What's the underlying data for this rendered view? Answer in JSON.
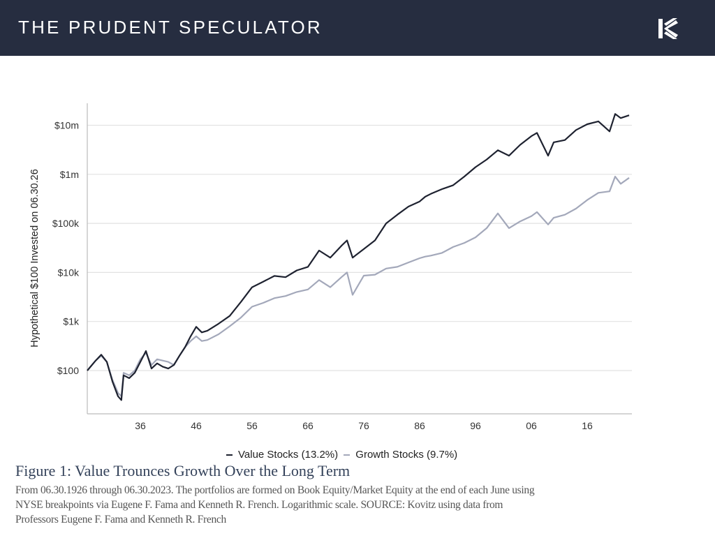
{
  "header": {
    "brand": "THE PRUDENT SPECULATOR",
    "logo_icon": "kovitz-k-logo"
  },
  "colors": {
    "header_bg": "#262d40",
    "value_series": "#1e2230",
    "growth_series": "#a3a8ba",
    "title": "#34425a"
  },
  "chart_data": {
    "type": "line",
    "ylabel": "Hypothetical $100 Invested on 06.30.26",
    "y_scale": "log",
    "ylim": [
      13,
      28000000
    ],
    "y_ticks": [
      {
        "value": 100,
        "label": "$100"
      },
      {
        "value": 1000,
        "label": "$1k"
      },
      {
        "value": 10000,
        "label": "$10k"
      },
      {
        "value": 100000,
        "label": "$100k"
      },
      {
        "value": 1000000,
        "label": "$1m"
      },
      {
        "value": 10000000,
        "label": "$10m"
      }
    ],
    "xlim": [
      1926.5,
      2023.5
    ],
    "x_ticks": [
      {
        "value": 1936,
        "label": "36"
      },
      {
        "value": 1946,
        "label": "46"
      },
      {
        "value": 1956,
        "label": "56"
      },
      {
        "value": 1966,
        "label": "66"
      },
      {
        "value": 1976,
        "label": "76"
      },
      {
        "value": 1986,
        "label": "86"
      },
      {
        "value": 1996,
        "label": "96"
      },
      {
        "value": 2006,
        "label": "06"
      },
      {
        "value": 2016,
        "label": "16"
      }
    ],
    "grid": "horizontal",
    "legend_position": "bottom",
    "series": [
      {
        "name": "Value Stocks (13.2%)",
        "color": "#1e2230",
        "x": [
          1926.5,
          1928,
          1929,
          1930,
          1931,
          1932,
          1932.6,
          1933,
          1934,
          1935,
          1936,
          1937,
          1938,
          1939,
          1940,
          1941,
          1942,
          1943,
          1944,
          1945,
          1946,
          1947,
          1948,
          1950,
          1952,
          1954,
          1956,
          1958,
          1960,
          1962,
          1964,
          1966,
          1968,
          1970,
          1972,
          1973,
          1974,
          1976,
          1978,
          1980,
          1982,
          1984,
          1986,
          1987,
          1988,
          1990,
          1992,
          1994,
          1996,
          1998,
          2000,
          2002,
          2004,
          2006,
          2007,
          2009,
          2010,
          2012,
          2014,
          2016,
          2018,
          2020,
          2021,
          2022,
          2023.5
        ],
        "y": [
          100,
          160,
          210,
          150,
          60,
          30,
          25,
          80,
          70,
          90,
          150,
          250,
          110,
          140,
          120,
          110,
          130,
          200,
          300,
          500,
          780,
          600,
          650,
          900,
          1300,
          2500,
          5000,
          6500,
          8500,
          8000,
          11000,
          13000,
          28000,
          20000,
          35000,
          45000,
          20000,
          30000,
          45000,
          100000,
          150000,
          220000,
          280000,
          350000,
          400000,
          500000,
          600000,
          900000,
          1400000,
          2000000,
          3100000,
          2400000,
          4000000,
          6000000,
          7000000,
          2400000,
          4500000,
          5000000,
          8000000,
          10500000,
          12000000,
          7500000,
          17000000,
          14000000,
          16000000
        ]
      },
      {
        "name": "Growth Stocks (9.7%)",
        "color": "#a3a8ba",
        "x": [
          1926.5,
          1928,
          1929,
          1930,
          1931,
          1932,
          1932.6,
          1933,
          1934,
          1935,
          1936,
          1937,
          1938,
          1939,
          1940,
          1941,
          1942,
          1943,
          1944,
          1945,
          1946,
          1947,
          1948,
          1950,
          1952,
          1954,
          1956,
          1958,
          1960,
          1962,
          1964,
          1966,
          1968,
          1970,
          1972,
          1973,
          1974,
          1976,
          1978,
          1980,
          1982,
          1984,
          1986,
          1987,
          1988,
          1990,
          1992,
          1994,
          1996,
          1998,
          2000,
          2002,
          2004,
          2006,
          2007,
          2009,
          2010,
          2012,
          2014,
          2016,
          2018,
          2020,
          2021,
          2022,
          2023.5
        ],
        "y": [
          100,
          160,
          200,
          150,
          65,
          35,
          30,
          90,
          80,
          100,
          170,
          230,
          130,
          170,
          160,
          150,
          130,
          200,
          300,
          400,
          500,
          400,
          420,
          550,
          800,
          1200,
          2000,
          2400,
          3000,
          3300,
          4000,
          4500,
          7000,
          5000,
          8000,
          10000,
          3500,
          8600,
          9000,
          12000,
          13000,
          16000,
          19500,
          21000,
          22000,
          25000,
          33000,
          40000,
          52000,
          80000,
          160000,
          80000,
          110000,
          140000,
          170000,
          95000,
          130000,
          150000,
          200000,
          300000,
          420000,
          450000,
          900000,
          640000,
          850000
        ]
      }
    ]
  }
}
